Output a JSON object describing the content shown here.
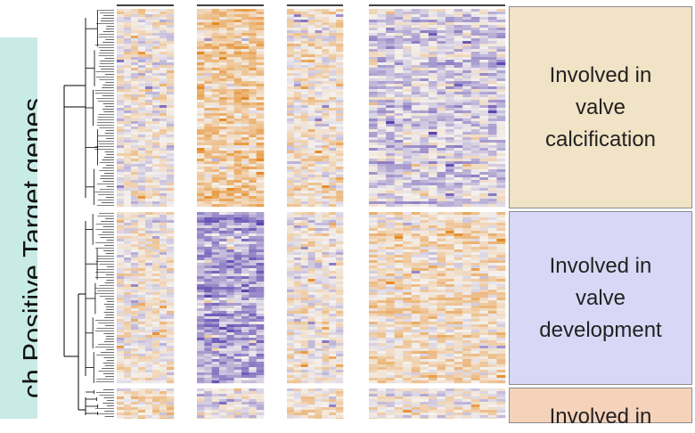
{
  "side_label": "ch Positive Target genes",
  "clusters": [
    {
      "label": "Involved in\nvalve\ncalcification",
      "color": "#f1e3c6"
    },
    {
      "label": "Involved in\nvalve\ndevelopment",
      "color": "#d8d8f6"
    },
    {
      "label": "Involved in",
      "color": "#f5d3bb"
    }
  ],
  "chart_data": {
    "type": "heatmap",
    "column_groups": 4,
    "row_clusters": 3,
    "palette": {
      "low": "#5a45b0",
      "mid": "#f4f1ee",
      "high": "#e68b24"
    },
    "group_bias": [
      [
        0.05,
        0.45,
        0.15,
        -0.22
      ],
      [
        0.05,
        -0.55,
        0.05,
        0.22
      ],
      [
        0.2,
        -0.1,
        0.15,
        0.0
      ]
    ],
    "dendrogram": true
  }
}
